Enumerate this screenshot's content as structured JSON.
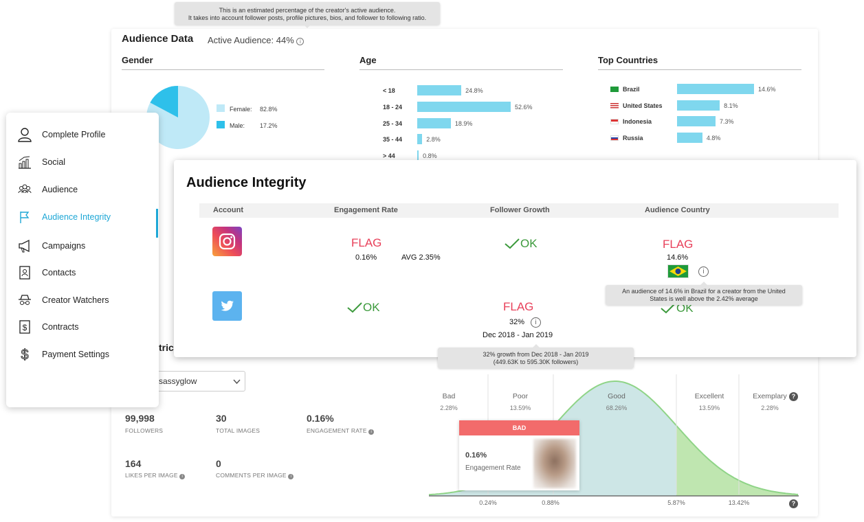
{
  "audience": {
    "title": "Audience Data",
    "active_label": "Active Audience: 44%",
    "tooltip_line1": "This is an estimated percentage of the creator's active audience.",
    "tooltip_line2": "It takes into account follower posts, profile pictures, bios, and follower to following ratio.",
    "gender": {
      "heading": "Gender",
      "female_label": "Female:",
      "female_value": "82.8%",
      "male_label": "Male:",
      "male_value": "17.2%",
      "female_pct": 82.8,
      "male_pct": 17.2
    },
    "age": {
      "heading": "Age",
      "rows": [
        {
          "label": "< 18",
          "value": "24.8%",
          "pct": 24.8
        },
        {
          "label": "18 - 24",
          "value": "52.6%",
          "pct": 52.6
        },
        {
          "label": "25 - 34",
          "value": "18.9%",
          "pct": 18.9
        },
        {
          "label": "35 - 44",
          "value": "2.8%",
          "pct": 2.8
        },
        {
          "label": "> 44",
          "value": "0.8%",
          "pct": 0.8
        }
      ]
    },
    "countries": {
      "heading": "Top Countries",
      "rows": [
        {
          "label": "Brazil",
          "value": "14.6%",
          "pct": 14.6
        },
        {
          "label": "United States",
          "value": "8.1%",
          "pct": 8.1
        },
        {
          "label": "Indonesia",
          "value": "7.3%",
          "pct": 7.3
        },
        {
          "label": "Russia",
          "value": "4.8%",
          "pct": 4.8
        }
      ]
    }
  },
  "integrity": {
    "title": "Audience Integrity",
    "headers": {
      "account": "Account",
      "engagement": "Engagement Rate",
      "growth": "Follower Growth",
      "country": "Audience Country"
    },
    "instagram": {
      "engagement_status": "FLAG",
      "engagement_value": "0.16%",
      "engagement_avg": "AVG 2.35%",
      "growth_status": "OK",
      "country_status": "FLAG",
      "country_value": "14.6%",
      "country_tooltip": "An audience of 14.6%  in Brazil for a creator from the United States is well above the 2.42% average"
    },
    "twitter": {
      "engagement_status": "OK",
      "growth_status": "FLAG",
      "growth_value": "32%",
      "growth_period": "Dec 2018 - Jan 2019",
      "growth_tooltip_line1": "32% growth from Dec 2018 - Jan 2019",
      "growth_tooltip_line2": "(449.63K to 595.30K followers)",
      "country_status": "OK"
    }
  },
  "sidebar": {
    "items": [
      {
        "label": "Complete Profile",
        "icon": "user-icon"
      },
      {
        "label": "Social",
        "icon": "bar-chart-icon"
      },
      {
        "label": "Audience",
        "icon": "group-icon"
      },
      {
        "label": "Audience Integrity",
        "icon": "flag-icon",
        "active": true
      },
      {
        "label": "Campaigns",
        "icon": "megaphone-icon"
      },
      {
        "label": "Contacts",
        "icon": "contact-card-icon"
      },
      {
        "label": "Creator Watchers",
        "icon": "spy-icon"
      },
      {
        "label": "Contracts",
        "icon": "dollar-document-icon"
      },
      {
        "label": "Payment Settings",
        "icon": "dollar-icon"
      }
    ]
  },
  "metrics": {
    "title_fragment": "trics",
    "account_select": "sassyglow",
    "followers": {
      "value": "99,998",
      "label": "FOLLOWERS"
    },
    "total_images": {
      "value": "30",
      "label": "TOTAL IMAGES"
    },
    "engagement_rate": {
      "value": "0.16%",
      "label": "ENGAGEMENT RATE"
    },
    "likes": {
      "value": "164",
      "label": "LIKES PER IMAGE"
    },
    "comments": {
      "value": "0",
      "label": "COMMENTS PER IMAGE"
    }
  },
  "distribution": {
    "bands": [
      {
        "label": "Bad",
        "pct": "2.28%"
      },
      {
        "label": "Poor",
        "pct": "13.59%"
      },
      {
        "label": "Good",
        "pct": "68.26%"
      },
      {
        "label": "Excellent",
        "pct": "13.59%"
      },
      {
        "label": "Exemplary",
        "pct": "2.28%"
      }
    ],
    "x_ticks": [
      "0.24%",
      "0.88%",
      "5.87%",
      "13.42%"
    ],
    "card_badge": "BAD",
    "card_value": "0.16%",
    "card_label": "Engagement Rate"
  },
  "colors": {
    "accent": "#1ea7d6",
    "bar": "#7fd7ee",
    "flag": "#e8405a",
    "ok": "#3c9a3c",
    "bad_badge": "#f26b6b",
    "curve_fill": "#cde6e6",
    "curve_excellent": "#bfe6b0"
  }
}
